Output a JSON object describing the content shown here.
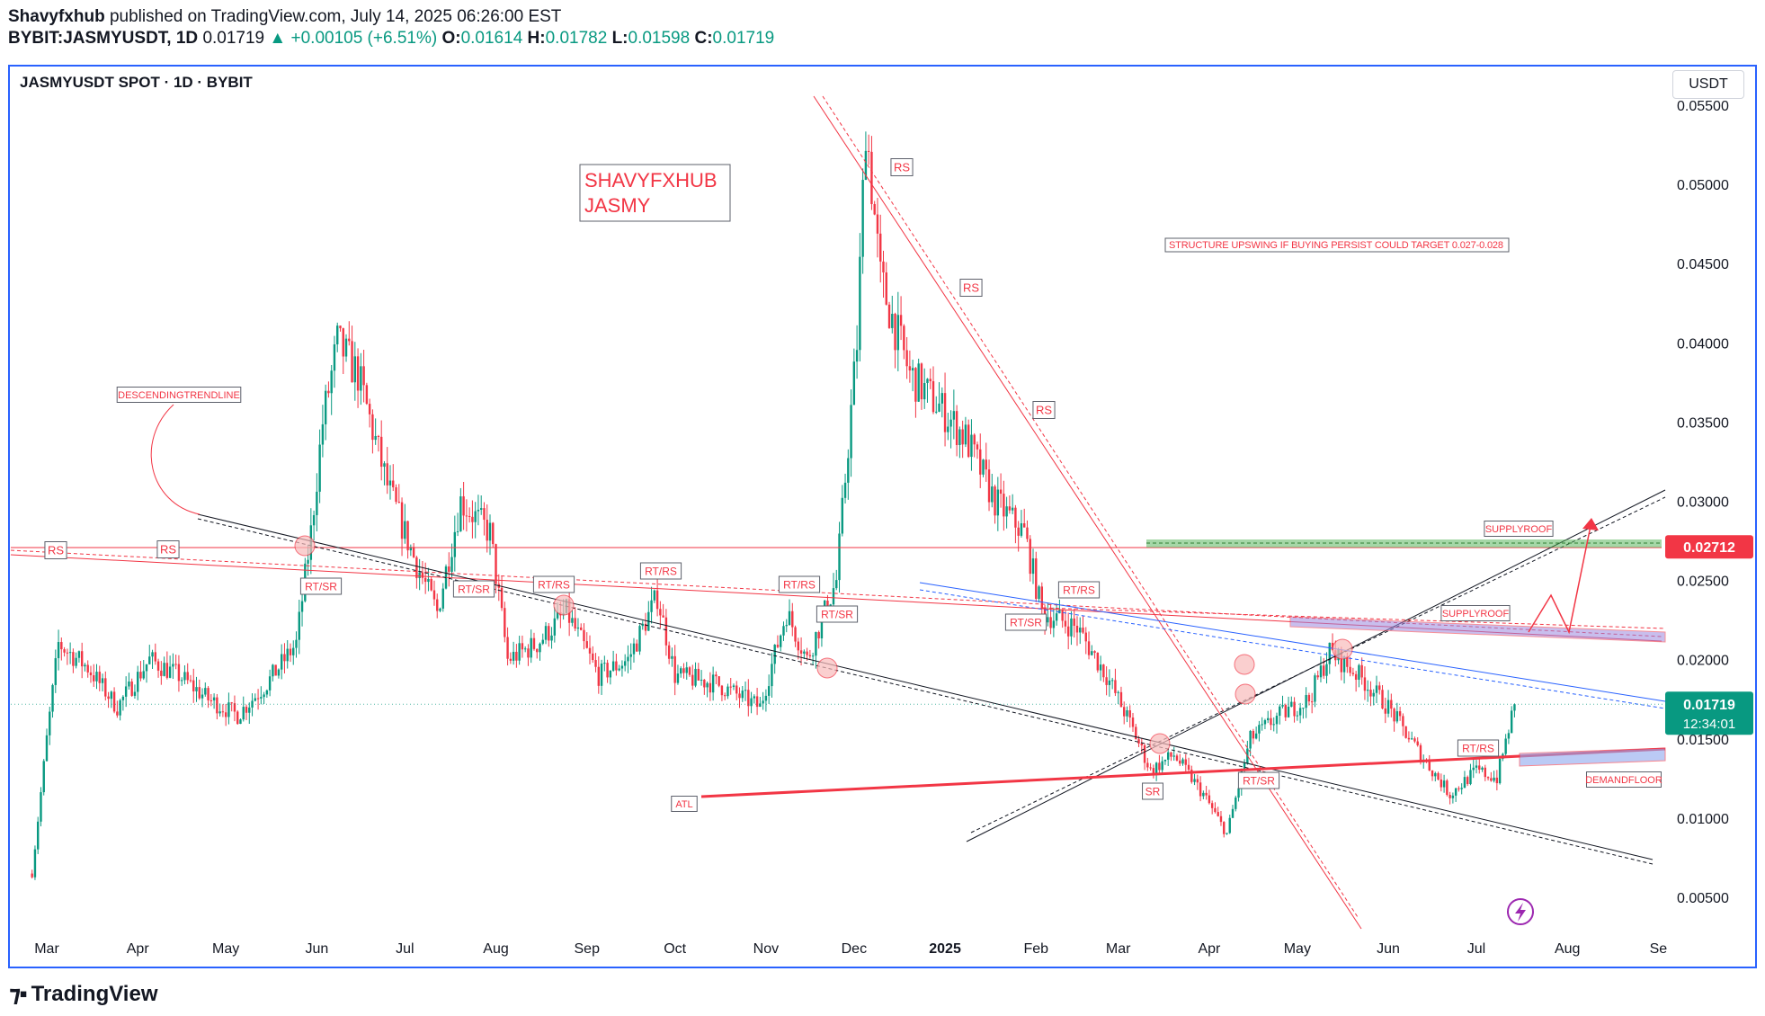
{
  "header": {
    "publisher": "Shavyfxhub",
    "published_text": "published on TradingView.com, July 14, 2025 06:26:00 EST",
    "symbol_line": "BYBIT:JASMYUSDT, 1D",
    "last": "0.01719",
    "change": "+0.00105 (+6.51%)",
    "o_label": "O:",
    "o": "0.01614",
    "h_label": "H:",
    "h": "0.01782",
    "l_label": "L:",
    "l": "0.01598",
    "c_label": "C:",
    "c": "0.01719"
  },
  "chart_title": "JASMYUSDT SPOT · 1D · BYBIT",
  "currency_button": "USDT",
  "footer": {
    "brand": "TradingView"
  },
  "colors": {
    "up": "#089981",
    "down": "#f23645",
    "accent": "#2962ff",
    "annot": "#f23645",
    "price_label_red": "#f23645",
    "price_label_green": "#089981"
  },
  "chart_data": {
    "type": "candlestick",
    "y_axis": {
      "ticks": [
        0.005,
        0.01,
        0.015,
        0.02,
        0.025,
        0.03,
        0.035,
        0.04,
        0.045,
        0.05,
        0.055
      ],
      "tick_labels": [
        "0.00500",
        "0.01000",
        "0.01500",
        "0.02000",
        "0.02500",
        "0.03000",
        "0.03500",
        "0.04000",
        "0.04500",
        "0.05000",
        "0.05500"
      ],
      "ylim": [
        0.002,
        0.058
      ]
    },
    "x_axis": {
      "tick_labels": [
        "Mar",
        "Apr",
        "May",
        "Jun",
        "Jul",
        "Aug",
        "Sep",
        "Oct",
        "Nov",
        "Dec",
        "2025",
        "Feb",
        "Mar",
        "Apr",
        "May",
        "Jun",
        "Jul",
        "Aug",
        "Se"
      ]
    },
    "price_path": [
      [
        "2024-02-25",
        0.0065
      ],
      [
        "2024-03-01",
        0.015
      ],
      [
        "2024-03-05",
        0.021
      ],
      [
        "2024-03-15",
        0.0195
      ],
      [
        "2024-03-25",
        0.017
      ],
      [
        "2024-04-05",
        0.02
      ],
      [
        "2024-04-15",
        0.019
      ],
      [
        "2024-04-25",
        0.0175
      ],
      [
        "2024-05-05",
        0.0165
      ],
      [
        "2024-05-15",
        0.0185
      ],
      [
        "2024-05-25",
        0.021
      ],
      [
        "2024-05-30",
        0.028
      ],
      [
        "2024-06-03",
        0.035
      ],
      [
        "2024-06-08",
        0.04
      ],
      [
        "2024-06-15",
        0.038
      ],
      [
        "2024-06-25",
        0.031
      ],
      [
        "2024-07-05",
        0.026
      ],
      [
        "2024-07-12",
        0.023
      ],
      [
        "2024-07-20",
        0.03
      ],
      [
        "2024-07-30",
        0.028
      ],
      [
        "2024-08-05",
        0.02
      ],
      [
        "2024-08-15",
        0.021
      ],
      [
        "2024-08-25",
        0.023
      ],
      [
        "2024-09-05",
        0.019
      ],
      [
        "2024-09-15",
        0.02
      ],
      [
        "2024-09-25",
        0.024
      ],
      [
        "2024-10-01",
        0.019
      ],
      [
        "2024-10-15",
        0.0185
      ],
      [
        "2024-10-30",
        0.017
      ],
      [
        "2024-11-08",
        0.023
      ],
      [
        "2024-11-15",
        0.02
      ],
      [
        "2024-11-25",
        0.025
      ],
      [
        "2024-12-02",
        0.04
      ],
      [
        "2024-12-05",
        0.054
      ],
      [
        "2024-12-10",
        0.044
      ],
      [
        "2024-12-20",
        0.038
      ],
      [
        "2024-12-30",
        0.036
      ],
      [
        "2025-01-08",
        0.034
      ],
      [
        "2025-01-18",
        0.03
      ],
      [
        "2025-01-28",
        0.028
      ],
      [
        "2025-02-03",
        0.023
      ],
      [
        "2025-02-15",
        0.022
      ],
      [
        "2025-02-25",
        0.019
      ],
      [
        "2025-03-05",
        0.016
      ],
      [
        "2025-03-12",
        0.013
      ],
      [
        "2025-03-20",
        0.014
      ],
      [
        "2025-03-30",
        0.0115
      ],
      [
        "2025-04-07",
        0.009
      ],
      [
        "2025-04-15",
        0.015
      ],
      [
        "2025-04-25",
        0.0165
      ],
      [
        "2025-05-05",
        0.0175
      ],
      [
        "2025-05-12",
        0.0205
      ],
      [
        "2025-05-22",
        0.019
      ],
      [
        "2025-06-01",
        0.017
      ],
      [
        "2025-06-12",
        0.014
      ],
      [
        "2025-06-22",
        0.0115
      ],
      [
        "2025-07-01",
        0.013
      ],
      [
        "2025-07-08",
        0.0125
      ],
      [
        "2025-07-14",
        0.0172
      ]
    ],
    "last_price": {
      "value": 0.01719,
      "label": "0.01719",
      "countdown": "12:34:01"
    },
    "level_label": {
      "value": 0.02712,
      "label": "0.02712"
    },
    "annotations": {
      "watermark_line1": "SHAVYFXHUB",
      "watermark_line2": "JASMY",
      "structure_note": "STRUCTURE  UPSWING IF BUYING PERSIST COULD TARGET 0.027-0.028",
      "descending": "DESCENDINGTRENDLINE",
      "supplyroof": "SUPPLYROOF",
      "demandfloor": "DEMANDFLOOR",
      "atl": "ATL",
      "rs": "RS",
      "rtsr": "RT/SR",
      "rtrs": "RT/RS",
      "sr": "SR"
    }
  }
}
